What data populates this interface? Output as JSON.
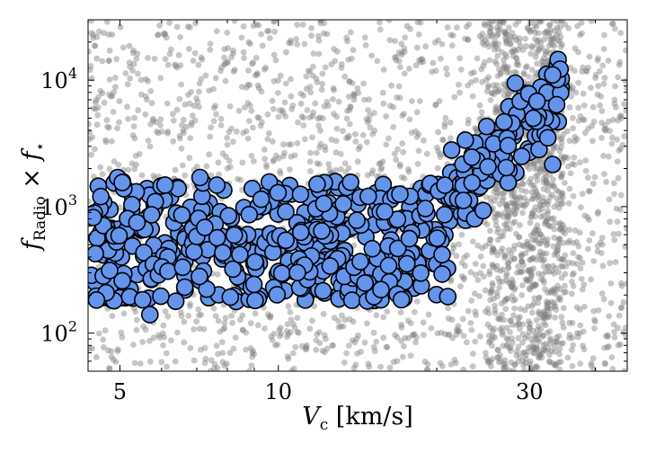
{
  "chart_data": {
    "type": "scatter",
    "xscale": "log",
    "yscale": "log",
    "xlim": [
      4.35,
      46
    ],
    "ylim": [
      50,
      30000
    ],
    "grid": false,
    "legend": "none",
    "xlabel": {
      "main": "V",
      "sub": "c",
      "unit": " [km/s]"
    },
    "ylabel": {
      "f1": "f",
      "sub1": "Radio",
      "times": " × ",
      "f2": "f",
      "sub2": "⋆"
    },
    "x_ticks": [
      {
        "value": 5,
        "label": "5"
      },
      {
        "value": 10,
        "label": "10"
      },
      {
        "value": 30,
        "label": "30"
      }
    ],
    "y_ticks": [
      {
        "value": 100,
        "base": "10",
        "exp": "2"
      },
      {
        "value": 1000,
        "base": "10",
        "exp": "3"
      },
      {
        "value": 10000,
        "base": "10",
        "exp": "4"
      }
    ],
    "series": [
      {
        "role": "background",
        "color": "#808080",
        "opacity": 0.45,
        "generator": {
          "seed": 12345,
          "count": 2600,
          "x_range": [
            4.35,
            46
          ],
          "y_range": [
            50,
            30000
          ],
          "x_density_peak": [
            25,
            35
          ],
          "sparse_band": {
            "x_range": [
              5,
              21
            ],
            "y_range": [
              180,
              1500
            ],
            "keep_fraction": 0.45
          }
        }
      },
      {
        "role": "highlighted",
        "color": "#6495ED",
        "edge_color": "#000000",
        "generator": {
          "seed": 777,
          "count": 560
        },
        "fixed_points": [
          [
            4.45,
            820
          ],
          [
            4.55,
            1450
          ],
          [
            4.6,
            1200
          ],
          [
            4.95,
            1700
          ],
          [
            5.05,
            1550
          ],
          [
            5.7,
            140
          ],
          [
            7.1,
            1700
          ],
          [
            23.6,
            800
          ],
          [
            24.5,
            930
          ],
          [
            28.8,
            6800
          ],
          [
            29.9,
            7800
          ],
          [
            31.0,
            6800
          ],
          [
            33.9,
            10100
          ],
          [
            34.3,
            12200
          ],
          [
            33.2,
            11000
          ],
          [
            30.5,
            5000
          ],
          [
            32.5,
            3500
          ],
          [
            29.0,
            2500
          ]
        ]
      }
    ]
  }
}
